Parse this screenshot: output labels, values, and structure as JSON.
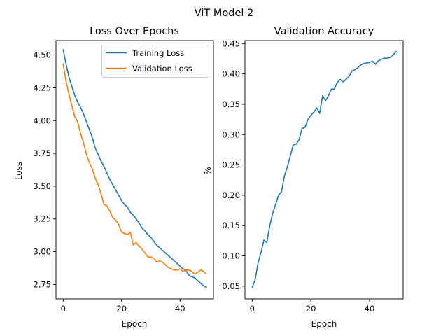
{
  "figure": {
    "suptitle": "ViT Model 2"
  },
  "chart_data": [
    {
      "type": "line",
      "title": "Loss Over Epochs",
      "xlabel": "Epoch",
      "ylabel": "Loss",
      "xlim": [
        -2.45,
        51.45
      ],
      "ylim": [
        2.64,
        4.61
      ],
      "x_ticks": [
        0,
        20,
        40
      ],
      "y_ticks": [
        2.75,
        3.0,
        3.25,
        3.5,
        3.75,
        4.0,
        4.25,
        4.5
      ],
      "y_tick_labels": [
        "2.75",
        "3.00",
        "3.25",
        "3.50",
        "3.75",
        "4.00",
        "4.25",
        "4.50"
      ],
      "grid": false,
      "legend": "top-right",
      "series": [
        {
          "name": "Training Loss",
          "color": "#1f77b4",
          "x": [
            0,
            1,
            2,
            3,
            4,
            5,
            6,
            7,
            8,
            9,
            10,
            11,
            12,
            13,
            14,
            15,
            16,
            17,
            18,
            19,
            20,
            21,
            22,
            23,
            24,
            25,
            26,
            27,
            28,
            29,
            30,
            31,
            32,
            33,
            34,
            35,
            36,
            37,
            38,
            39,
            40,
            41,
            42,
            43,
            44,
            45,
            46,
            47,
            48,
            49
          ],
          "values": [
            4.54,
            4.43,
            4.33,
            4.26,
            4.19,
            4.14,
            4.1,
            4.05,
            3.99,
            3.93,
            3.87,
            3.79,
            3.74,
            3.69,
            3.65,
            3.6,
            3.55,
            3.51,
            3.47,
            3.43,
            3.39,
            3.36,
            3.34,
            3.3,
            3.28,
            3.25,
            3.22,
            3.18,
            3.16,
            3.13,
            3.11,
            3.08,
            3.05,
            3.03,
            3.01,
            2.99,
            2.97,
            2.95,
            2.93,
            2.91,
            2.89,
            2.87,
            2.86,
            2.82,
            2.81,
            2.8,
            2.78,
            2.76,
            2.74,
            2.73
          ]
        },
        {
          "name": "Validation Loss",
          "color": "#ff7f0e",
          "x": [
            0,
            1,
            2,
            3,
            4,
            5,
            6,
            7,
            8,
            9,
            10,
            11,
            12,
            13,
            14,
            15,
            16,
            17,
            18,
            19,
            20,
            21,
            22,
            23,
            24,
            25,
            26,
            27,
            28,
            29,
            30,
            31,
            32,
            33,
            34,
            35,
            36,
            37,
            38,
            39,
            40,
            41,
            42,
            43,
            44,
            45,
            46,
            47,
            48,
            49
          ],
          "values": [
            4.43,
            4.3,
            4.2,
            4.11,
            4.03,
            3.99,
            3.9,
            3.83,
            3.74,
            3.68,
            3.63,
            3.56,
            3.51,
            3.44,
            3.36,
            3.35,
            3.31,
            3.26,
            3.24,
            3.21,
            3.15,
            3.14,
            3.13,
            3.15,
            3.05,
            3.07,
            3.04,
            3.02,
            2.99,
            2.96,
            2.96,
            2.95,
            2.92,
            2.93,
            2.92,
            2.9,
            2.88,
            2.87,
            2.86,
            2.86,
            2.87,
            2.85,
            2.86,
            2.86,
            2.85,
            2.83,
            2.84,
            2.86,
            2.85,
            2.83
          ]
        }
      ]
    },
    {
      "type": "line",
      "title": "Validation Accuracy",
      "xlabel": "Epoch",
      "ylabel": "%",
      "xlim": [
        -2.45,
        51.45
      ],
      "ylim": [
        0.029,
        0.455
      ],
      "x_ticks": [
        0,
        20,
        40
      ],
      "y_ticks": [
        0.05,
        0.1,
        0.15,
        0.2,
        0.25,
        0.3,
        0.35,
        0.4,
        0.45
      ],
      "y_tick_labels": [
        "0.05",
        "0.10",
        "0.15",
        "0.20",
        "0.25",
        "0.30",
        "0.35",
        "0.40",
        "0.45"
      ],
      "grid": false,
      "series": [
        {
          "color": "#1f77b4",
          "x": [
            0,
            1,
            2,
            3,
            4,
            5,
            6,
            7,
            8,
            9,
            10,
            11,
            12,
            13,
            14,
            15,
            16,
            17,
            18,
            19,
            20,
            21,
            22,
            23,
            24,
            25,
            26,
            27,
            28,
            29,
            30,
            31,
            32,
            33,
            34,
            35,
            36,
            37,
            38,
            39,
            40,
            41,
            42,
            43,
            44,
            45,
            46,
            47,
            48,
            49
          ],
          "values": [
            0.048,
            0.06,
            0.088,
            0.105,
            0.126,
            0.122,
            0.15,
            0.17,
            0.185,
            0.2,
            0.206,
            0.232,
            0.247,
            0.265,
            0.283,
            0.284,
            0.292,
            0.31,
            0.312,
            0.325,
            0.332,
            0.337,
            0.344,
            0.335,
            0.364,
            0.356,
            0.364,
            0.375,
            0.375,
            0.386,
            0.391,
            0.387,
            0.391,
            0.396,
            0.405,
            0.407,
            0.41,
            0.415,
            0.417,
            0.418,
            0.419,
            0.421,
            0.416,
            0.422,
            0.424,
            0.426,
            0.426,
            0.427,
            0.431,
            0.437
          ]
        }
      ]
    }
  ]
}
